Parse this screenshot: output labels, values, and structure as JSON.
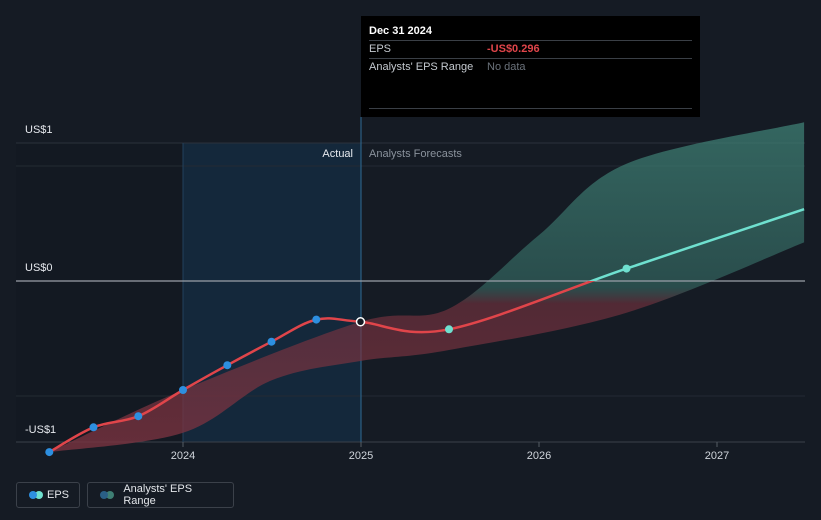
{
  "chart_data": {
    "type": "line",
    "y_axis": {
      "ticks": [
        {
          "value": 1,
          "label": "US$1"
        },
        {
          "value": 0,
          "label": "US$0"
        },
        {
          "value": -1,
          "label": "-US$1"
        }
      ]
    },
    "x_axis": {
      "ticks": [
        "2024",
        "2025",
        "2026",
        "2027"
      ]
    },
    "regions": {
      "actual_label": "Actual",
      "forecast_label": "Analysts Forecasts"
    },
    "series": [
      {
        "name": "EPS",
        "color": "#e0454a",
        "forecast_color": "#6fe0cf",
        "points": [
          {
            "x": "2023-04-01",
            "y": -1.24
          },
          {
            "x": "2023-07-01",
            "y": -1.06
          },
          {
            "x": "2023-10-01",
            "y": -0.98
          },
          {
            "x": "2024-01-01",
            "y": -0.79
          },
          {
            "x": "2024-04-01",
            "y": -0.61
          },
          {
            "x": "2024-07-01",
            "y": -0.44
          },
          {
            "x": "2024-10-01",
            "y": -0.28
          },
          {
            "x": "2024-12-31",
            "y": -0.296
          },
          {
            "x": "2025-07-01",
            "y": -0.35
          },
          {
            "x": "2026-07-01",
            "y": 0.09
          },
          {
            "x": "2027-07-01",
            "y": 0.52
          }
        ]
      }
    ],
    "range_band": {
      "name": "Analysts' EPS Range",
      "color": "#3e7f74",
      "upper": [
        {
          "x": "2023-04-01",
          "y": -1.24
        },
        {
          "x": "2024-01-01",
          "y": -0.79
        },
        {
          "x": "2024-12-31",
          "y": -0.296
        },
        {
          "x": "2025-07-01",
          "y": -0.2
        },
        {
          "x": "2026-01-01",
          "y": 0.33
        },
        {
          "x": "2026-07-01",
          "y": 0.85
        },
        {
          "x": "2027-07-01",
          "y": 1.15
        }
      ],
      "lower": [
        {
          "x": "2023-04-01",
          "y": -1.24
        },
        {
          "x": "2024-01-01",
          "y": -1.1
        },
        {
          "x": "2024-07-01",
          "y": -0.72
        },
        {
          "x": "2024-12-31",
          "y": -0.58
        },
        {
          "x": "2025-07-01",
          "y": -0.5
        },
        {
          "x": "2026-07-01",
          "y": -0.23
        },
        {
          "x": "2027-07-01",
          "y": 0.28
        }
      ]
    },
    "legend": [
      {
        "label": "EPS",
        "colors": [
          "#2d8fe0",
          "#6fe0cf"
        ]
      },
      {
        "label": "Analysts' EPS Range",
        "colors": [
          "#2a5f86",
          "#3e7f74"
        ]
      }
    ]
  },
  "tooltip": {
    "date": "Dec 31 2024",
    "rows": [
      {
        "key": "EPS",
        "value": "-US$0.296"
      },
      {
        "key": "Analysts' EPS Range",
        "value": "No data"
      }
    ]
  }
}
